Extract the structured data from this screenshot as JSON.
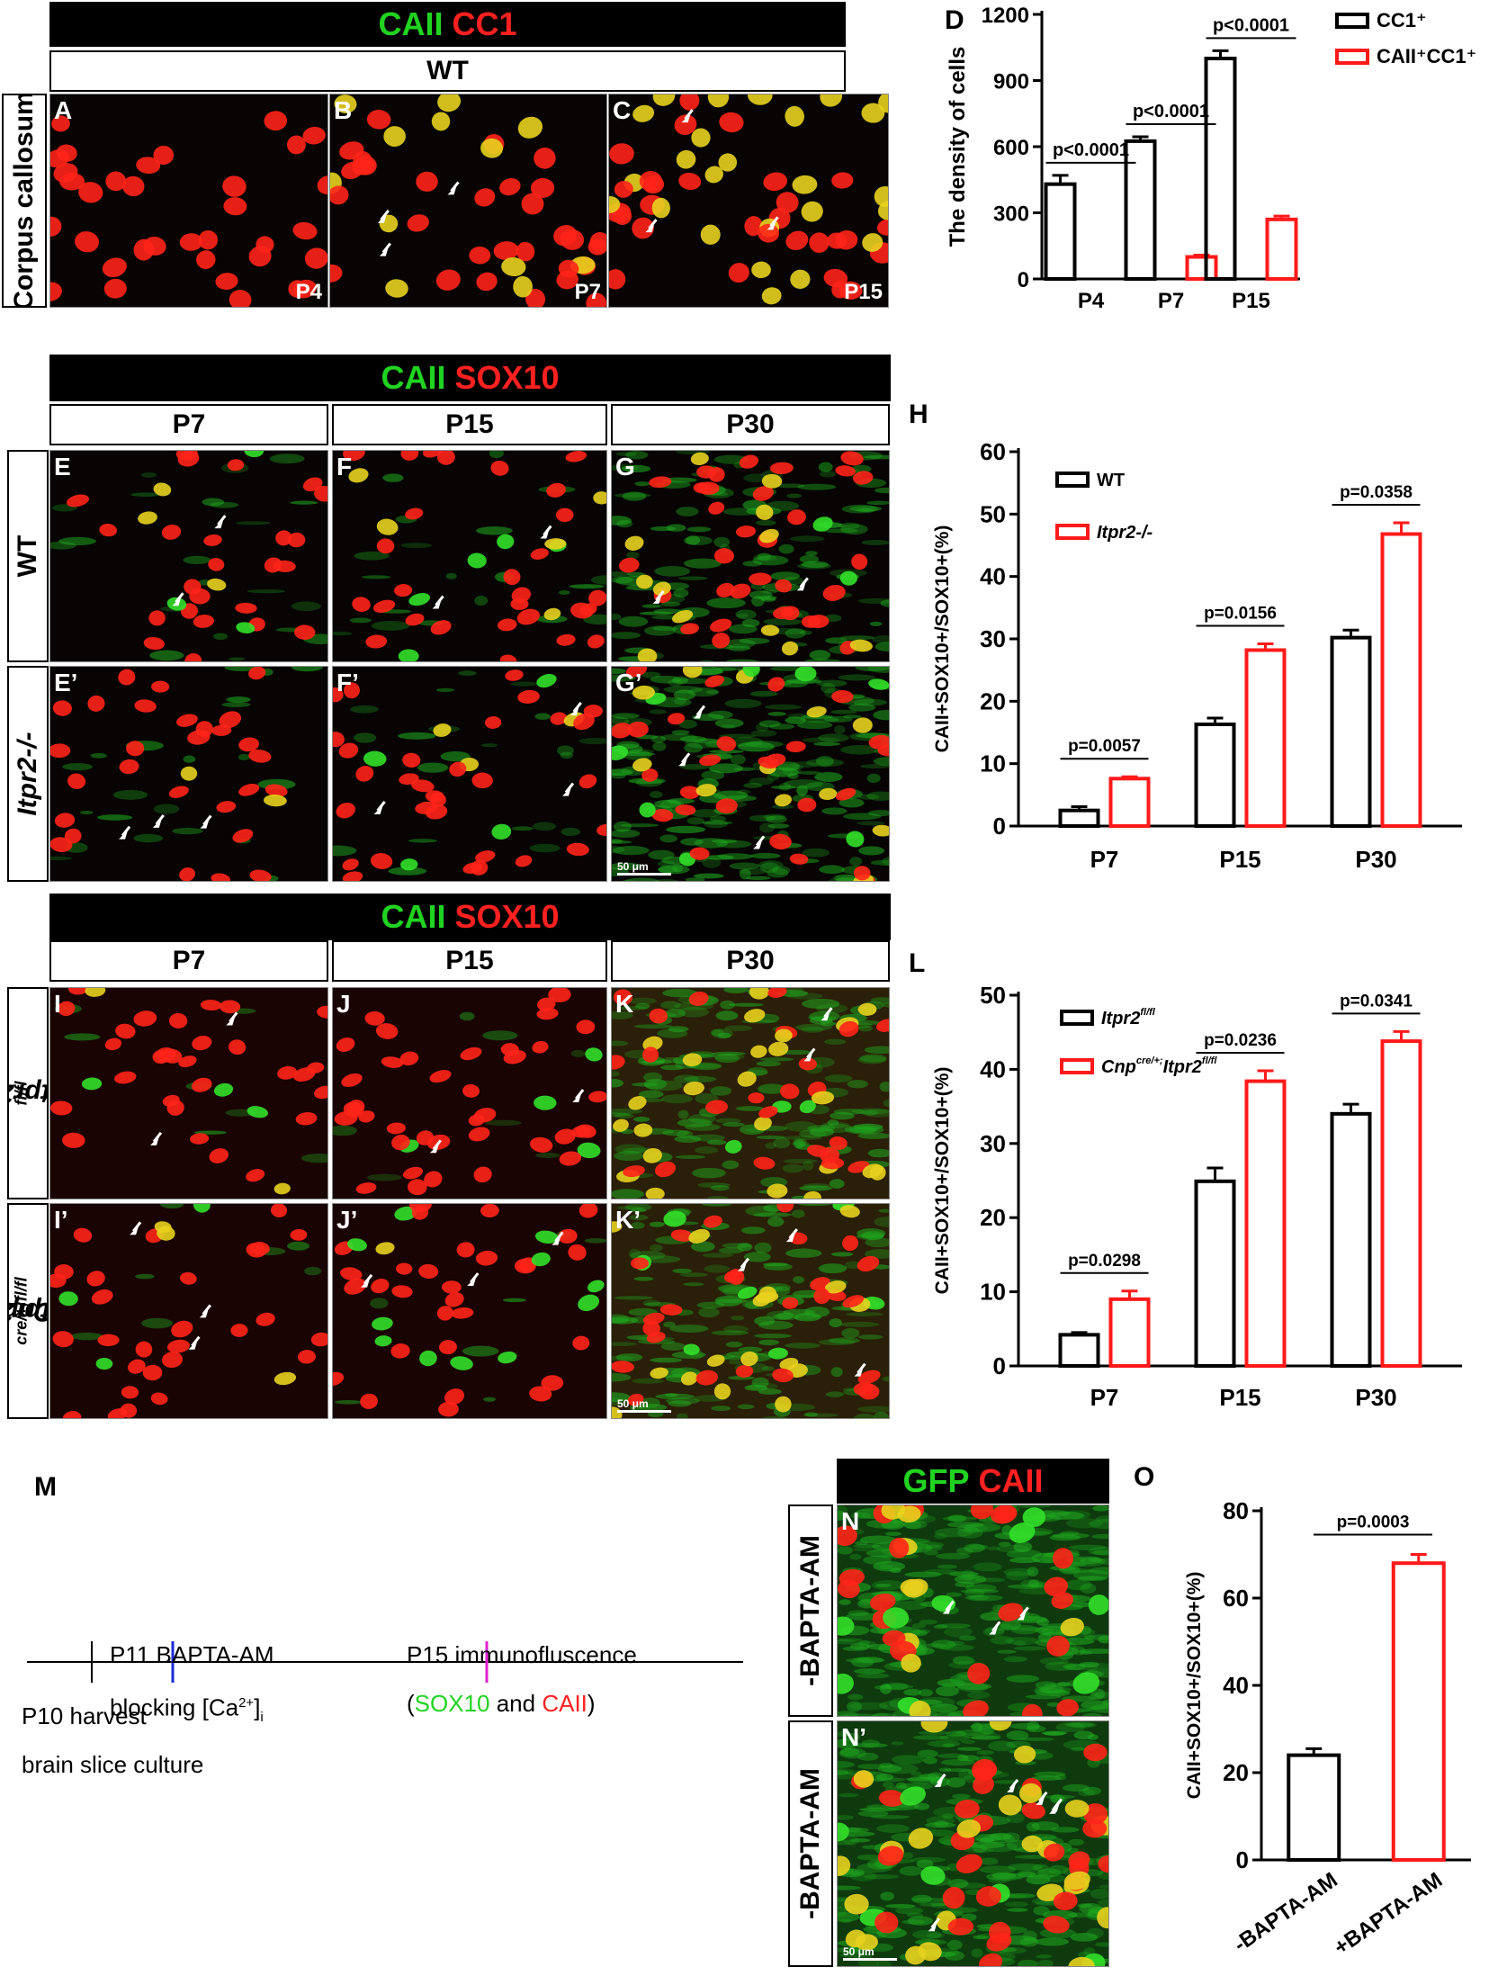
{
  "row1": {
    "header": {
      "green": "CAII",
      "red": "CC1"
    },
    "genotype": "WT",
    "side_label": "Corpus callosum",
    "panels": [
      {
        "letter": "A",
        "tag": "P4",
        "density": 0.35
      },
      {
        "letter": "B",
        "tag": "P7",
        "density": 0.55
      },
      {
        "letter": "C",
        "tag": "P15",
        "density": 0.85
      }
    ]
  },
  "row2": {
    "header": {
      "green": "CAII",
      "red": "SOX10"
    },
    "columns": [
      "P7",
      "P15",
      "P30"
    ],
    "side_labels": [
      "WT",
      "Itpr2-/-"
    ],
    "letters": [
      [
        "E",
        "F",
        "G"
      ],
      [
        "E’",
        "F’",
        "G’"
      ]
    ],
    "scale_bar": "50 μm"
  },
  "row3": {
    "header": {
      "green": "CAII",
      "red": "SOX10"
    },
    "columns": [
      "P7",
      "P15",
      "P30"
    ],
    "side_labels": [
      {
        "base": "Itpr2",
        "sup": "fl/fl"
      },
      {
        "pre": "Cnp",
        "pre_sup": "cre/+;",
        "base": "Itpr2",
        "sup": "fl/fl"
      }
    ],
    "letters": [
      [
        "I",
        "J",
        "K"
      ],
      [
        "I’",
        "J’",
        "K’"
      ]
    ],
    "scale_bar": "50 μm"
  },
  "panelM": {
    "letter": "M",
    "step1_line1": "P11 BAPTA-AM",
    "step1_line2_pre": "blocking [Ca",
    "step1_line2_sup": "2+",
    "step1_line2_post": "]",
    "step1_line2_sub": "i",
    "step2_line1": "P15 immunofluscence",
    "step2_open": "(",
    "step2_green": "SOX10",
    "step2_and": " and ",
    "step2_red": "CAII",
    "step2_close": ")",
    "step0_line1": "P10 harvest",
    "step0_line2": "brain slice culture",
    "colors": {
      "axis": "#000000",
      "tick1": "#1a2bd6",
      "tick2": "#e21fd0"
    }
  },
  "panelN": {
    "header": {
      "green": "GFP",
      "red": "CAII"
    },
    "side_labels": [
      "-BAPTA-AM",
      "-BAPTA-AM"
    ],
    "letters": [
      "N",
      "N’"
    ],
    "scale_bar": "50 μm"
  },
  "chart_data": [
    {
      "panel": "D",
      "type": "bar",
      "ylabel": "The density of cells",
      "categories": [
        "P4",
        "P7",
        "P15"
      ],
      "ylim": [
        0,
        1200
      ],
      "yticks": [
        0,
        300,
        600,
        900,
        1200
      ],
      "series": [
        {
          "name": "CC1⁺",
          "color": "#000000",
          "values": [
            430,
            625,
            1000
          ],
          "errors": [
            40,
            20,
            35
          ]
        },
        {
          "name": "CAII⁺CC1⁺",
          "color": "#ff1a1a",
          "values": [
            0,
            100,
            270
          ],
          "errors": [
            0,
            8,
            15
          ]
        }
      ],
      "annotations": [
        "p<0.0001",
        "p<0.0001",
        "p<0.0001"
      ]
    },
    {
      "panel": "H",
      "type": "bar",
      "ylabel": "CAII+SOX10+/SOX10+(%)",
      "categories": [
        "P7",
        "P15",
        "P30"
      ],
      "ylim": [
        0,
        60
      ],
      "yticks": [
        0,
        10,
        20,
        30,
        40,
        50,
        60
      ],
      "series": [
        {
          "name": "WT",
          "color": "#000000",
          "values": [
            2.5,
            16.3,
            30.2
          ],
          "errors": [
            0.6,
            1.0,
            1.2
          ]
        },
        {
          "name": "Itpr2-/-",
          "color": "#ff1a1a",
          "values": [
            7.6,
            28.2,
            46.8
          ],
          "errors": [
            0.3,
            1.0,
            1.8
          ]
        }
      ],
      "annotations": [
        "p=0.0057",
        "p=0.0156",
        "p=0.0358"
      ]
    },
    {
      "panel": "L",
      "type": "bar",
      "ylabel": "CAII+SOX10+/SOX10+(%)",
      "categories": [
        "P7",
        "P15",
        "P30"
      ],
      "ylim": [
        0,
        50
      ],
      "yticks": [
        0,
        10,
        20,
        30,
        40,
        50
      ],
      "series": [
        {
          "name": "Itpr2",
          "name_sup": "fl/fl",
          "color": "#000000",
          "values": [
            4.2,
            24.9,
            34.0
          ],
          "errors": [
            0.3,
            1.8,
            1.3
          ]
        },
        {
          "name_pre": "Cnp",
          "name_pre_sup": "cre/+;",
          "name": "Itpr2",
          "name_sup": "fl/fl",
          "color": "#ff1a1a",
          "values": [
            9.0,
            38.4,
            43.8
          ],
          "errors": [
            1.1,
            1.4,
            1.3
          ]
        }
      ],
      "annotations": [
        "p=0.0298",
        "p=0.0236",
        "p=0.0341"
      ]
    },
    {
      "panel": "O",
      "type": "bar",
      "ylabel": "CAII+SOX10+/SOX10+(%)",
      "categories": [
        "-BAPTA-AM",
        "+BAPTA-AM"
      ],
      "ylim": [
        0,
        80
      ],
      "yticks": [
        0,
        20,
        40,
        60,
        80
      ],
      "series": [
        {
          "name": "",
          "colors": [
            "#000000",
            "#ff1a1a"
          ],
          "values": [
            24,
            68
          ],
          "errors": [
            1.5,
            2.0
          ]
        }
      ],
      "annotations": [
        "p=0.0003"
      ]
    }
  ]
}
